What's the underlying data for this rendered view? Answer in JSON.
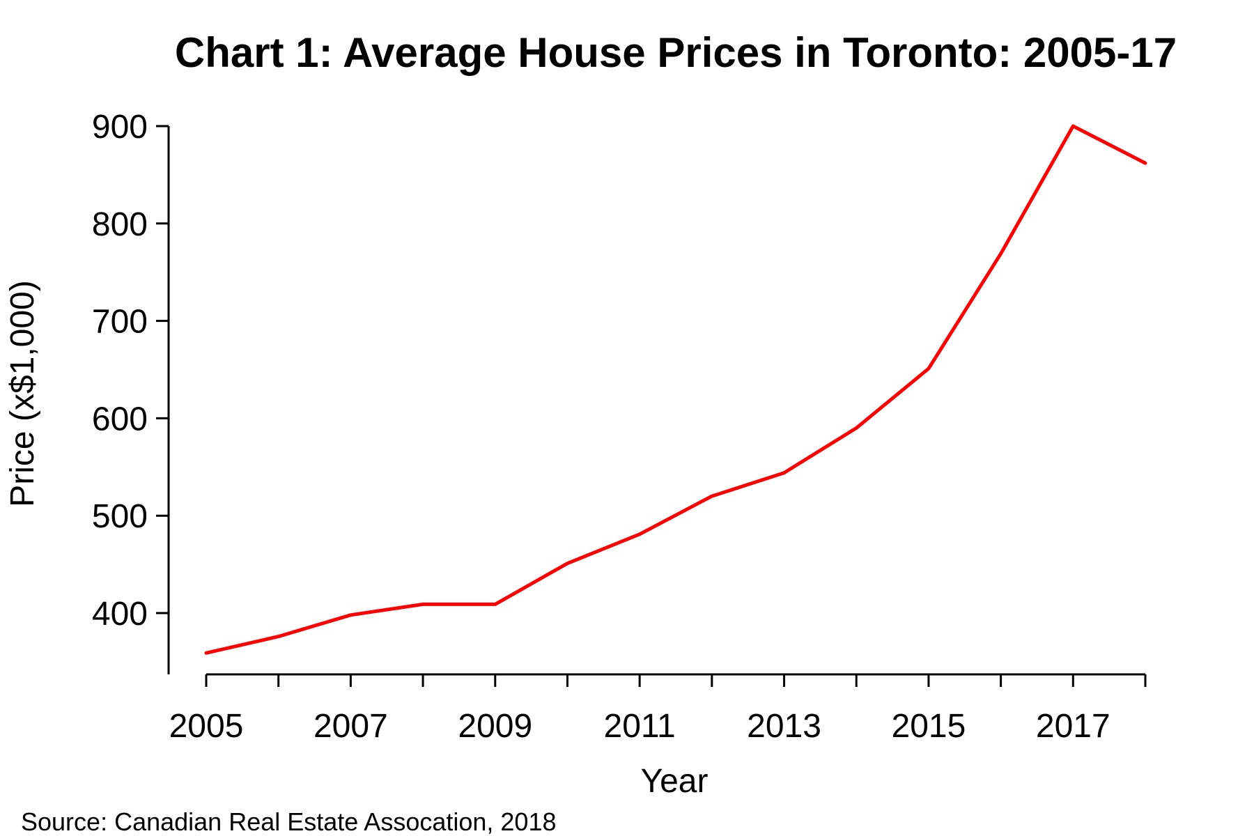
{
  "chart_data": {
    "type": "line",
    "title": "Chart 1: Average House Prices in Toronto: 2005-17",
    "xlabel": "Year",
    "ylabel": "Price (x$1,000)",
    "source": "Source: Canadian Real Estate Assocation, 2018",
    "x": [
      2005,
      2006,
      2007,
      2008,
      2009,
      2010,
      2011,
      2012,
      2013,
      2014,
      2015,
      2016,
      2017,
      2018
    ],
    "series": [
      {
        "values": [
          359,
          376,
          398,
          409,
          409,
          451,
          481,
          520,
          544,
          590,
          651,
          769,
          900,
          862
        ],
        "color": "#ff0000"
      }
    ],
    "xlim": [
      2005,
      2018
    ],
    "ylim": [
      400,
      900
    ],
    "x_tick_labels": [
      "2005",
      "2007",
      "2009",
      "2011",
      "2013",
      "2015",
      "2017"
    ],
    "y_tick_labels": [
      "400",
      "500",
      "600",
      "700",
      "800",
      "900"
    ],
    "grid": false,
    "legend": "none"
  }
}
